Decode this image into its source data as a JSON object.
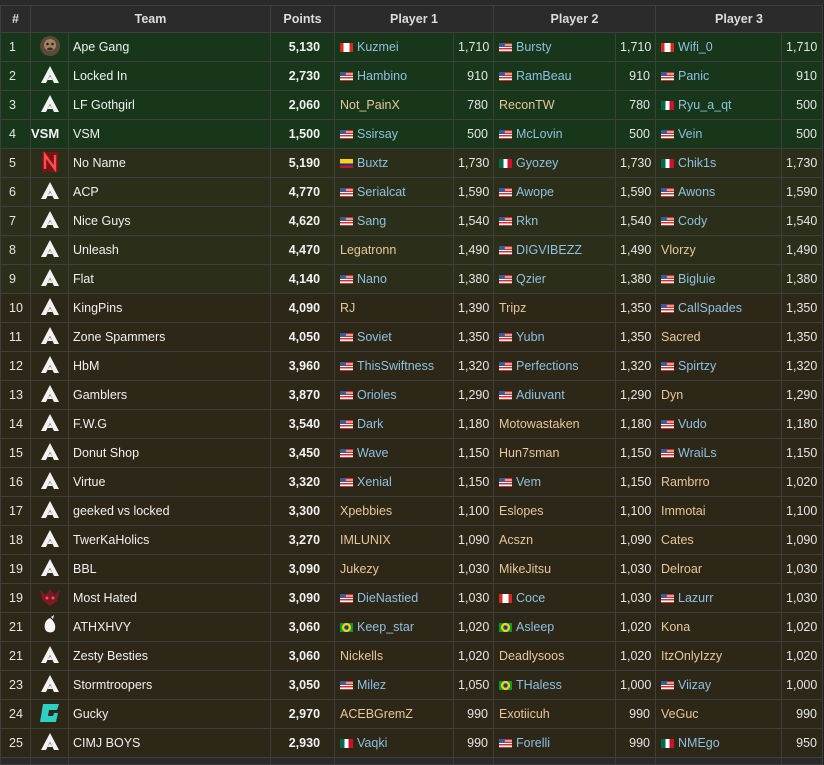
{
  "headers": {
    "rank": "#",
    "team": "Team",
    "points": "Points",
    "p1": "Player 1",
    "p2": "Player 2",
    "p3": "Player 3"
  },
  "colors": {
    "green_row": "#17361a",
    "olive_row": "#2b2f1a",
    "brown_row": "#2d2718",
    "link": "#8fc0df",
    "plain_name": "#e8c79a"
  },
  "rows": [
    {
      "rank": "1",
      "band": "green",
      "logo": "ape-gang-logo",
      "team": "Ape Gang",
      "points": "5,130",
      "p1": {
        "flag": "ca",
        "name": "Kuzmei",
        "link": true
      },
      "p1v": "1,710",
      "p2": {
        "flag": "us",
        "name": "Bursty",
        "link": true
      },
      "p2v": "1,710",
      "p3": {
        "flag": "ca",
        "name": "Wifi_0",
        "link": true
      },
      "p3v": "1,710"
    },
    {
      "rank": "2",
      "band": "green",
      "logo": "apex-default-icon",
      "team": "Locked In",
      "points": "2,730",
      "p1": {
        "flag": "us",
        "name": "Hambino",
        "link": true
      },
      "p1v": "910",
      "p2": {
        "flag": "us",
        "name": "RamBeau",
        "link": true
      },
      "p2v": "910",
      "p3": {
        "flag": "us",
        "name": "Panic",
        "link": true
      },
      "p3v": "910"
    },
    {
      "rank": "3",
      "band": "green",
      "logo": "apex-default-icon",
      "team": "LF Gothgirl",
      "points": "2,060",
      "p1": {
        "flag": "",
        "name": "Not_PainX",
        "link": false
      },
      "p1v": "780",
      "p2": {
        "flag": "",
        "name": "ReconTW",
        "link": false
      },
      "p2v": "780",
      "p3": {
        "flag": "mx",
        "name": "Ryu_a_qt",
        "link": true
      },
      "p3v": "500"
    },
    {
      "rank": "4",
      "band": "green",
      "logo": "vsm-logo",
      "team": "VSM",
      "points": "1,500",
      "p1": {
        "flag": "us",
        "name": "Ssirsay",
        "link": true
      },
      "p1v": "500",
      "p2": {
        "flag": "us",
        "name": "McLovin",
        "link": true
      },
      "p2v": "500",
      "p3": {
        "flag": "us",
        "name": "Vein",
        "link": true
      },
      "p3v": "500"
    },
    {
      "rank": "5",
      "band": "olive",
      "logo": "no-name-logo",
      "team": "No Name",
      "points": "5,190",
      "p1": {
        "flag": "co",
        "name": "Buxtz",
        "link": true
      },
      "p1v": "1,730",
      "p2": {
        "flag": "mx",
        "name": "Gyozey",
        "link": true
      },
      "p2v": "1,730",
      "p3": {
        "flag": "mx",
        "name": "Chik1s",
        "link": true
      },
      "p3v": "1,730"
    },
    {
      "rank": "6",
      "band": "olive",
      "logo": "apex-default-icon",
      "team": "ACP",
      "points": "4,770",
      "p1": {
        "flag": "us",
        "name": "Serialcat",
        "link": true
      },
      "p1v": "1,590",
      "p2": {
        "flag": "us",
        "name": "Awope",
        "link": true
      },
      "p2v": "1,590",
      "p3": {
        "flag": "us",
        "name": "Awons",
        "link": true
      },
      "p3v": "1,590"
    },
    {
      "rank": "7",
      "band": "olive",
      "logo": "apex-default-icon",
      "team": "Nice Guys",
      "points": "4,620",
      "p1": {
        "flag": "us",
        "name": "Sang",
        "link": true
      },
      "p1v": "1,540",
      "p2": {
        "flag": "us",
        "name": "Rkn",
        "link": true
      },
      "p2v": "1,540",
      "p3": {
        "flag": "us",
        "name": "Cody",
        "link": true
      },
      "p3v": "1,540"
    },
    {
      "rank": "8",
      "band": "olive",
      "logo": "apex-default-icon",
      "team": "Unleash",
      "points": "4,470",
      "p1": {
        "flag": "",
        "name": "Legatronn",
        "link": false
      },
      "p1v": "1,490",
      "p2": {
        "flag": "us",
        "name": "DIGVIBEZZ",
        "link": true
      },
      "p2v": "1,490",
      "p3": {
        "flag": "",
        "name": "Vlorzy",
        "link": false
      },
      "p3v": "1,490"
    },
    {
      "rank": "9",
      "band": "olive",
      "logo": "apex-default-icon",
      "team": "Flat",
      "points": "4,140",
      "p1": {
        "flag": "us",
        "name": "Nano",
        "link": true
      },
      "p1v": "1,380",
      "p2": {
        "flag": "us",
        "name": "Qzier",
        "link": true
      },
      "p2v": "1,380",
      "p3": {
        "flag": "us",
        "name": "Bigluie",
        "link": true
      },
      "p3v": "1,380"
    },
    {
      "rank": "10",
      "band": "brown",
      "logo": "apex-default-icon",
      "team": "KingPins",
      "points": "4,090",
      "p1": {
        "flag": "",
        "name": "RJ",
        "link": false
      },
      "p1v": "1,390",
      "p2": {
        "flag": "",
        "name": "Tripz",
        "link": false
      },
      "p2v": "1,350",
      "p3": {
        "flag": "us",
        "name": "CallSpades",
        "link": true
      },
      "p3v": "1,350"
    },
    {
      "rank": "11",
      "band": "brown",
      "logo": "apex-default-icon",
      "team": "Zone Spammers",
      "points": "4,050",
      "p1": {
        "flag": "us",
        "name": "Soviet",
        "link": true
      },
      "p1v": "1,350",
      "p2": {
        "flag": "us",
        "name": "Yubn",
        "link": true
      },
      "p2v": "1,350",
      "p3": {
        "flag": "",
        "name": "Sacred",
        "link": false
      },
      "p3v": "1,350"
    },
    {
      "rank": "12",
      "band": "brown",
      "logo": "apex-default-icon",
      "team": "HbM",
      "points": "3,960",
      "p1": {
        "flag": "us",
        "name": "ThisSwiftness",
        "link": true
      },
      "p1v": "1,320",
      "p2": {
        "flag": "us",
        "name": "Perfections",
        "link": true
      },
      "p2v": "1,320",
      "p3": {
        "flag": "us",
        "name": "Spirtzy",
        "link": true
      },
      "p3v": "1,320"
    },
    {
      "rank": "13",
      "band": "brown",
      "logo": "apex-default-icon",
      "team": "Gamblers",
      "points": "3,870",
      "p1": {
        "flag": "us",
        "name": "Orioles",
        "link": true
      },
      "p1v": "1,290",
      "p2": {
        "flag": "us",
        "name": "Adiuvant",
        "link": true
      },
      "p2v": "1,290",
      "p3": {
        "flag": "",
        "name": "Dyn",
        "link": false
      },
      "p3v": "1,290"
    },
    {
      "rank": "14",
      "band": "brown",
      "logo": "apex-default-icon",
      "team": "F.W.G",
      "points": "3,540",
      "p1": {
        "flag": "us",
        "name": "Dark",
        "link": true
      },
      "p1v": "1,180",
      "p2": {
        "flag": "",
        "name": "Motowastaken",
        "link": false
      },
      "p2v": "1,180",
      "p3": {
        "flag": "us",
        "name": "Vudo",
        "link": true
      },
      "p3v": "1,180"
    },
    {
      "rank": "15",
      "band": "brown",
      "logo": "apex-default-icon",
      "team": "Donut Shop",
      "points": "3,450",
      "p1": {
        "flag": "us",
        "name": "Wave",
        "link": true
      },
      "p1v": "1,150",
      "p2": {
        "flag": "",
        "name": "Hun7sman",
        "link": false
      },
      "p2v": "1,150",
      "p3": {
        "flag": "us",
        "name": "WraiLs",
        "link": true
      },
      "p3v": "1,150"
    },
    {
      "rank": "16",
      "band": "brown",
      "logo": "apex-default-icon",
      "team": "Virtue",
      "points": "3,320",
      "p1": {
        "flag": "us",
        "name": "Xenial",
        "link": true
      },
      "p1v": "1,150",
      "p2": {
        "flag": "us",
        "name": "Vem",
        "link": true
      },
      "p2v": "1,150",
      "p3": {
        "flag": "",
        "name": "Rambrro",
        "link": false
      },
      "p3v": "1,020"
    },
    {
      "rank": "17",
      "band": "brown",
      "logo": "apex-default-icon",
      "team": "geeked vs locked",
      "points": "3,300",
      "p1": {
        "flag": "",
        "name": "Xpebbies",
        "link": false
      },
      "p1v": "1,100",
      "p2": {
        "flag": "",
        "name": "Eslopes",
        "link": false
      },
      "p2v": "1,100",
      "p3": {
        "flag": "",
        "name": "Immotai",
        "link": false
      },
      "p3v": "1,100"
    },
    {
      "rank": "18",
      "band": "brown",
      "logo": "apex-default-icon",
      "team": "TwerKaHolics",
      "points": "3,270",
      "p1": {
        "flag": "",
        "name": "IMLUNIX",
        "link": false
      },
      "p1v": "1,090",
      "p2": {
        "flag": "",
        "name": "Acszn",
        "link": false
      },
      "p2v": "1,090",
      "p3": {
        "flag": "",
        "name": "Cates",
        "link": false
      },
      "p3v": "1,090"
    },
    {
      "rank": "19",
      "band": "brown",
      "logo": "apex-default-icon",
      "team": "BBL",
      "points": "3,090",
      "p1": {
        "flag": "",
        "name": "Jukezy",
        "link": false
      },
      "p1v": "1,030",
      "p2": {
        "flag": "",
        "name": "MikeJitsu",
        "link": false
      },
      "p2v": "1,030",
      "p3": {
        "flag": "",
        "name": "Delroar",
        "link": false
      },
      "p3v": "1,030"
    },
    {
      "rank": "19",
      "band": "brown",
      "logo": "most-hated-logo",
      "team": "Most Hated",
      "points": "3,090",
      "p1": {
        "flag": "us",
        "name": "DieNastied",
        "link": true
      },
      "p1v": "1,030",
      "p2": {
        "flag": "ca",
        "name": "Coce",
        "link": true
      },
      "p2v": "1,030",
      "p3": {
        "flag": "us",
        "name": "Lazurr",
        "link": true
      },
      "p3v": "1,030"
    },
    {
      "rank": "21",
      "band": "brown",
      "logo": "athxhvy-logo",
      "team": "ATHXHVY",
      "points": "3,060",
      "p1": {
        "flag": "br",
        "name": "Keep_star",
        "link": true
      },
      "p1v": "1,020",
      "p2": {
        "flag": "br",
        "name": "Asleep",
        "link": true
      },
      "p2v": "1,020",
      "p3": {
        "flag": "",
        "name": "Kona",
        "link": false
      },
      "p3v": "1,020"
    },
    {
      "rank": "21",
      "band": "brown",
      "logo": "apex-default-icon",
      "team": "Zesty Besties",
      "points": "3,060",
      "p1": {
        "flag": "",
        "name": "Nickells",
        "link": false
      },
      "p1v": "1,020",
      "p2": {
        "flag": "",
        "name": "Deadlysoos",
        "link": false
      },
      "p2v": "1,020",
      "p3": {
        "flag": "",
        "name": "ItzOnlyIzzy",
        "link": false
      },
      "p3v": "1,020"
    },
    {
      "rank": "23",
      "band": "brown",
      "logo": "apex-default-icon",
      "team": "Stormtroopers",
      "points": "3,050",
      "p1": {
        "flag": "us",
        "name": "Milez",
        "link": true
      },
      "p1v": "1,050",
      "p2": {
        "flag": "br",
        "name": "THaless",
        "link": true
      },
      "p2v": "1,000",
      "p3": {
        "flag": "us",
        "name": "Viizay",
        "link": true
      },
      "p3v": "1,000"
    },
    {
      "rank": "24",
      "band": "brown",
      "logo": "gucky-logo",
      "team": "Gucky",
      "points": "2,970",
      "p1": {
        "flag": "",
        "name": "ACEBGremZ",
        "link": false
      },
      "p1v": "990",
      "p2": {
        "flag": "",
        "name": "Exotiicuh",
        "link": false
      },
      "p2v": "990",
      "p3": {
        "flag": "",
        "name": "VeGuc",
        "link": false
      },
      "p3v": "990"
    },
    {
      "rank": "25",
      "band": "brown",
      "logo": "apex-default-icon",
      "team": "CIMJ BOYS",
      "points": "2,930",
      "p1": {
        "flag": "mx",
        "name": "Vaqki",
        "link": true
      },
      "p1v": "990",
      "p2": {
        "flag": "us",
        "name": "Forelli",
        "link": true
      },
      "p2v": "990",
      "p3": {
        "flag": "mx",
        "name": "NMEgo",
        "link": true
      },
      "p3v": "950"
    }
  ]
}
